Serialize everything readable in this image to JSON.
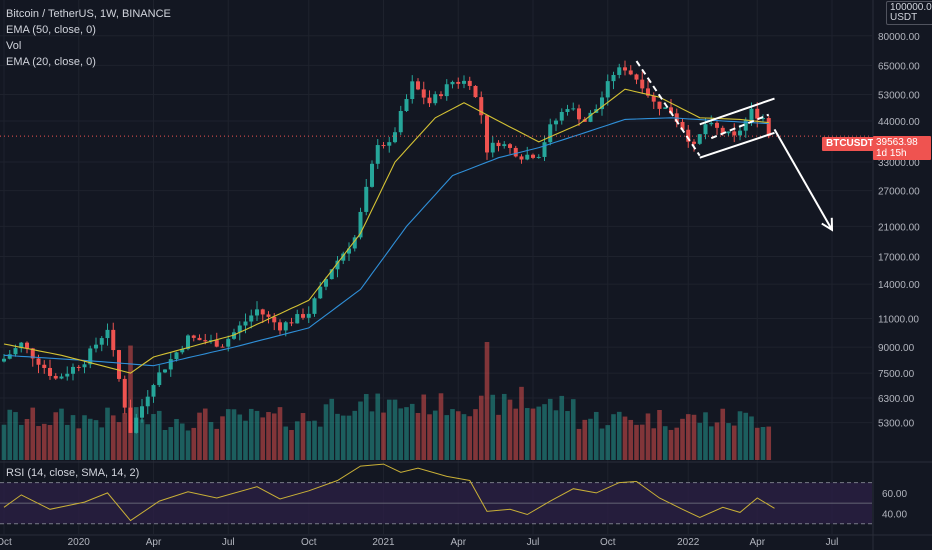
{
  "header": {
    "title": "Bitcoin / TetherUS, 1W, BINANCE",
    "indicators": [
      "EMA (50, close, 0)",
      "Vol",
      "EMA (20, close, 0)"
    ]
  },
  "price_tag": {
    "symbol": "BTCUSDT",
    "price": "39563.98",
    "countdown": "1d 15h"
  },
  "price_axis_top": {
    "value": "100000.00",
    "unit": "USDT"
  },
  "rsi_label": "RSI (14, close, SMA, 14, 2)",
  "colors": {
    "background": "#131722",
    "up": "#26a69a",
    "down": "#ef5350",
    "ema20": "#d4c234",
    "ema50": "#2f8fd8",
    "rsi": "#c9b037",
    "rsi_band": "#2a1f44",
    "annotation": "#ffffff"
  },
  "chart_data": [
    {
      "type": "candlestick",
      "title": "Bitcoin / TetherUS, 1W, BINANCE",
      "scale": "log",
      "ylim": [
        3800,
        100000
      ],
      "y_ticks": [
        80000,
        65000,
        53000,
        44000,
        33000,
        27000,
        21000,
        17000,
        14000,
        11000,
        9000,
        7500,
        6300,
        5300
      ],
      "y_tick_labels": [
        "80000.00",
        "65000.00",
        "53000.00",
        "44000.00",
        "33000.00",
        "27000.00",
        "21000.00",
        "17000.00",
        "14000.00",
        "11000.00",
        "9000.00",
        "7500.00",
        "6300.00",
        "5300.00"
      ],
      "x_tick_labels": [
        "Oct",
        "2020",
        "Apr",
        "Jul",
        "Oct",
        "2021",
        "Apr",
        "Jul",
        "Oct",
        "2022",
        "Apr",
        "Jul"
      ],
      "x_tick_weeks": [
        0,
        13,
        26,
        39,
        53,
        66,
        79,
        92,
        105,
        119,
        131,
        144
      ],
      "week_count": 150,
      "last_price": 39563.98,
      "key_closes": [
        {
          "week": 0,
          "close": 8300
        },
        {
          "week": 3,
          "close": 9200
        },
        {
          "week": 9,
          "close": 7200
        },
        {
          "week": 14,
          "close": 8200
        },
        {
          "week": 18,
          "close": 10300
        },
        {
          "week": 22,
          "close": 5000
        },
        {
          "week": 26,
          "close": 7100
        },
        {
          "week": 32,
          "close": 9600
        },
        {
          "week": 38,
          "close": 9200
        },
        {
          "week": 44,
          "close": 11700
        },
        {
          "week": 48,
          "close": 10400
        },
        {
          "week": 53,
          "close": 11500
        },
        {
          "week": 57,
          "close": 15700
        },
        {
          "week": 61,
          "close": 19400
        },
        {
          "week": 64,
          "close": 32000
        },
        {
          "week": 65,
          "close": 38000
        },
        {
          "week": 67,
          "close": 37000
        },
        {
          "week": 71,
          "close": 57000
        },
        {
          "week": 74,
          "close": 50000
        },
        {
          "week": 78,
          "close": 58000
        },
        {
          "week": 81,
          "close": 58000
        },
        {
          "week": 83,
          "close": 46000
        },
        {
          "week": 84,
          "close": 36000
        },
        {
          "week": 86,
          "close": 38000
        },
        {
          "week": 90,
          "close": 34500
        },
        {
          "week": 93,
          "close": 35000
        },
        {
          "week": 95,
          "close": 42000
        },
        {
          "week": 98,
          "close": 49000
        },
        {
          "week": 101,
          "close": 44000
        },
        {
          "week": 103,
          "close": 48000
        },
        {
          "week": 106,
          "close": 61500
        },
        {
          "week": 108,
          "close": 64000
        },
        {
          "week": 111,
          "close": 57000
        },
        {
          "week": 113,
          "close": 50000
        },
        {
          "week": 116,
          "close": 47000
        },
        {
          "week": 118,
          "close": 42000
        },
        {
          "week": 120,
          "close": 36500
        },
        {
          "week": 122,
          "close": 43000
        },
        {
          "week": 124,
          "close": 41500
        },
        {
          "week": 127,
          "close": 39000
        },
        {
          "week": 130,
          "close": 47000
        },
        {
          "week": 132,
          "close": 45000
        },
        {
          "week": 133,
          "close": 39563.98
        }
      ],
      "ema20_anchors": [
        {
          "week": 0,
          "value": 9200
        },
        {
          "week": 10,
          "value": 8500
        },
        {
          "week": 22,
          "value": 7500
        },
        {
          "week": 26,
          "value": 8400
        },
        {
          "week": 40,
          "value": 9800
        },
        {
          "week": 53,
          "value": 12500
        },
        {
          "week": 62,
          "value": 20000
        },
        {
          "week": 68,
          "value": 33000
        },
        {
          "week": 75,
          "value": 45000
        },
        {
          "week": 80,
          "value": 50000
        },
        {
          "week": 86,
          "value": 44000
        },
        {
          "week": 93,
          "value": 38000
        },
        {
          "week": 100,
          "value": 43000
        },
        {
          "week": 108,
          "value": 55000
        },
        {
          "week": 114,
          "value": 52000
        },
        {
          "week": 121,
          "value": 45000
        },
        {
          "week": 128,
          "value": 44500
        },
        {
          "week": 133,
          "value": 43500
        }
      ],
      "ema50_anchors": [
        {
          "week": 0,
          "value": 8500
        },
        {
          "week": 14,
          "value": 8200
        },
        {
          "week": 26,
          "value": 7900
        },
        {
          "week": 40,
          "value": 9000
        },
        {
          "week": 53,
          "value": 10300
        },
        {
          "week": 62,
          "value": 13500
        },
        {
          "week": 70,
          "value": 21000
        },
        {
          "week": 78,
          "value": 30000
        },
        {
          "week": 86,
          "value": 34000
        },
        {
          "week": 93,
          "value": 36500
        },
        {
          "week": 100,
          "value": 40000
        },
        {
          "week": 108,
          "value": 44500
        },
        {
          "week": 116,
          "value": 45000
        },
        {
          "week": 125,
          "value": 44000
        },
        {
          "week": 133,
          "value": 43200
        }
      ],
      "annotations": {
        "downtrend_line": [
          {
            "week": 110,
            "price": 67000
          },
          {
            "week": 121,
            "price": 34500
          }
        ],
        "channel_upper": [
          {
            "week": 121,
            "price": 43000
          },
          {
            "week": 134,
            "price": 51500
          }
        ],
        "channel_lower": [
          {
            "week": 121,
            "price": 34000
          },
          {
            "week": 134,
            "price": 40500
          }
        ],
        "channel_mid": [
          {
            "week": 123,
            "price": 39000
          },
          {
            "week": 133,
            "price": 46000
          }
        ],
        "forecast_arrow": [
          {
            "week": 134,
            "price": 41500
          },
          {
            "week": 144,
            "price": 20500
          }
        ]
      }
    },
    {
      "type": "bar",
      "title": "Vol",
      "note": "weekly volume bars colored by candle direction",
      "highlights": [
        {
          "week": 22,
          "relative": 0.97
        },
        {
          "week": 84,
          "relative": 1.0
        },
        {
          "week": 90,
          "relative": 0.62
        }
      ]
    },
    {
      "type": "line",
      "title": "RSI (14, close, SMA, 14, 2)",
      "ylim": [
        20,
        90
      ],
      "y_ticks": [
        40,
        60
      ],
      "y_tick_labels": [
        "40.00",
        "60.00"
      ],
      "bands": [
        30,
        70
      ],
      "points": [
        {
          "week": 0,
          "value": 46
        },
        {
          "week": 3,
          "value": 58
        },
        {
          "week": 8,
          "value": 44
        },
        {
          "week": 14,
          "value": 51
        },
        {
          "week": 18,
          "value": 60
        },
        {
          "week": 22,
          "value": 33
        },
        {
          "week": 27,
          "value": 52
        },
        {
          "week": 32,
          "value": 61
        },
        {
          "week": 37,
          "value": 55
        },
        {
          "week": 44,
          "value": 66
        },
        {
          "week": 48,
          "value": 54
        },
        {
          "week": 53,
          "value": 62
        },
        {
          "week": 58,
          "value": 72
        },
        {
          "week": 62,
          "value": 86
        },
        {
          "week": 66,
          "value": 88
        },
        {
          "week": 69,
          "value": 80
        },
        {
          "week": 72,
          "value": 84
        },
        {
          "week": 77,
          "value": 76
        },
        {
          "week": 81,
          "value": 72
        },
        {
          "week": 84,
          "value": 42
        },
        {
          "week": 88,
          "value": 44
        },
        {
          "week": 91,
          "value": 39
        },
        {
          "week": 95,
          "value": 52
        },
        {
          "week": 99,
          "value": 64
        },
        {
          "week": 103,
          "value": 60
        },
        {
          "week": 107,
          "value": 70
        },
        {
          "week": 110,
          "value": 71
        },
        {
          "week": 114,
          "value": 55
        },
        {
          "week": 118,
          "value": 44
        },
        {
          "week": 121,
          "value": 36
        },
        {
          "week": 125,
          "value": 46
        },
        {
          "week": 128,
          "value": 41
        },
        {
          "week": 131,
          "value": 55
        },
        {
          "week": 134,
          "value": 45
        }
      ]
    }
  ]
}
